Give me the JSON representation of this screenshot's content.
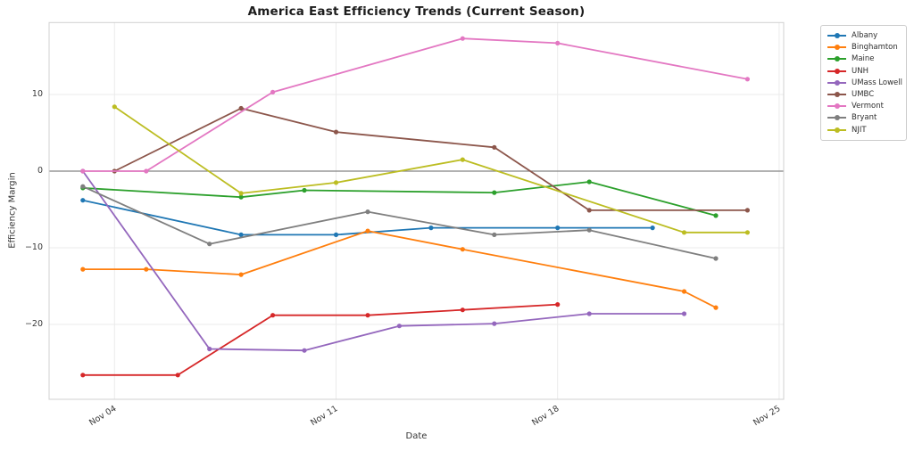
{
  "chart_data": {
    "type": "line",
    "title": "America East Efficiency Trends (Current Season)",
    "xlabel": "Date",
    "ylabel": "Efficiency Margin",
    "grid": true,
    "zero_line": true,
    "legend_position": "outside-right",
    "x_unit": "day of November (current season)",
    "xlim_days": [
      1.9,
      25.2
    ],
    "ylim": [
      -29.8,
      19.4
    ],
    "x_tick_days": [
      4,
      11,
      18,
      25
    ],
    "x_tick_labels": [
      "Nov 04",
      "Nov 11",
      "Nov 18",
      "Nov 25"
    ],
    "y_tick_values": [
      10,
      0,
      -10,
      -20
    ],
    "y_tick_labels": [
      "10",
      "0",
      "−10",
      "−20"
    ],
    "series": [
      {
        "name": "Albany",
        "color": "#1f77b4",
        "points": [
          {
            "day": 3,
            "value": -3.8
          },
          {
            "day": 8,
            "value": -8.3
          },
          {
            "day": 11,
            "value": -8.3
          },
          {
            "day": 14,
            "value": -7.4
          },
          {
            "day": 18,
            "value": -7.4
          },
          {
            "day": 21,
            "value": -7.4
          }
        ]
      },
      {
        "name": "Binghamton",
        "color": "#ff7f0e",
        "points": [
          {
            "day": 3,
            "value": -12.8
          },
          {
            "day": 5,
            "value": -12.8
          },
          {
            "day": 8,
            "value": -13.5
          },
          {
            "day": 12,
            "value": -7.8
          },
          {
            "day": 15,
            "value": -10.2
          },
          {
            "day": 22,
            "value": -15.7
          },
          {
            "day": 23,
            "value": -17.8
          }
        ]
      },
      {
        "name": "Maine",
        "color": "#2ca02c",
        "points": [
          {
            "day": 3,
            "value": -2.2
          },
          {
            "day": 8,
            "value": -3.4
          },
          {
            "day": 10,
            "value": -2.5
          },
          {
            "day": 16,
            "value": -2.8
          },
          {
            "day": 19,
            "value": -1.4
          },
          {
            "day": 23,
            "value": -5.8
          }
        ]
      },
      {
        "name": "UNH",
        "color": "#d62728",
        "points": [
          {
            "day": 3,
            "value": -26.6
          },
          {
            "day": 6,
            "value": -26.6
          },
          {
            "day": 9,
            "value": -18.8
          },
          {
            "day": 12,
            "value": -18.8
          },
          {
            "day": 15,
            "value": -18.1
          },
          {
            "day": 18,
            "value": -17.4
          }
        ]
      },
      {
        "name": "UMass Lowell",
        "color": "#9467bd",
        "points": [
          {
            "day": 3,
            "value": 0.0
          },
          {
            "day": 7,
            "value": -23.2
          },
          {
            "day": 10,
            "value": -23.4
          },
          {
            "day": 13,
            "value": -20.2
          },
          {
            "day": 16,
            "value": -19.9
          },
          {
            "day": 19,
            "value": -18.6
          },
          {
            "day": 22,
            "value": -18.6
          }
        ]
      },
      {
        "name": "UMBC",
        "color": "#8c564b",
        "points": [
          {
            "day": 4,
            "value": 0.0
          },
          {
            "day": 8,
            "value": 8.2
          },
          {
            "day": 11,
            "value": 5.1
          },
          {
            "day": 16,
            "value": 3.1
          },
          {
            "day": 19,
            "value": -5.1
          },
          {
            "day": 24,
            "value": -5.1
          }
        ]
      },
      {
        "name": "Vermont",
        "color": "#e377c2",
        "points": [
          {
            "day": 3,
            "value": 0.0
          },
          {
            "day": 5,
            "value": 0.0
          },
          {
            "day": 9,
            "value": 10.3
          },
          {
            "day": 15,
            "value": 17.3
          },
          {
            "day": 18,
            "value": 16.7
          },
          {
            "day": 24,
            "value": 12.0
          }
        ]
      },
      {
        "name": "Bryant",
        "color": "#7f7f7f",
        "points": [
          {
            "day": 3,
            "value": -2.0
          },
          {
            "day": 7,
            "value": -9.5
          },
          {
            "day": 12,
            "value": -5.3
          },
          {
            "day": 16,
            "value": -8.3
          },
          {
            "day": 19,
            "value": -7.7
          },
          {
            "day": 23,
            "value": -11.4
          }
        ]
      },
      {
        "name": "NJIT",
        "color": "#bcbd22",
        "points": [
          {
            "day": 4,
            "value": 8.4
          },
          {
            "day": 8,
            "value": -2.9
          },
          {
            "day": 11,
            "value": -1.5
          },
          {
            "day": 15,
            "value": 1.5
          },
          {
            "day": 22,
            "value": -8.0
          },
          {
            "day": 24,
            "value": -8.0
          }
        ]
      }
    ],
    "style_colors": {
      "zero_line": "#858585",
      "gridline": "#ebebeb",
      "spine": "#d0d0d0",
      "tick_text": "#3a3a3a",
      "title_text": "#1c1c1c"
    }
  }
}
